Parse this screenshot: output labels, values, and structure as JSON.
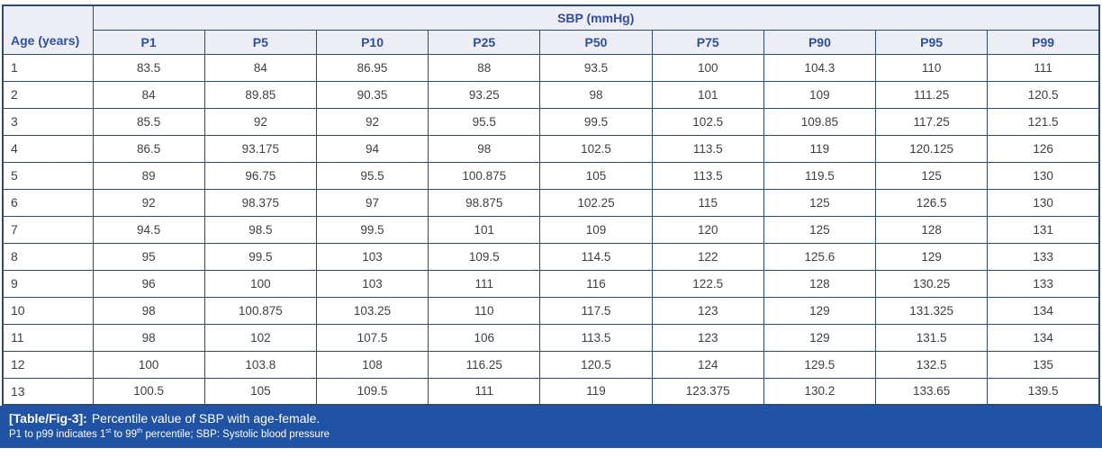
{
  "table": {
    "corner_header": "Age (years)",
    "group_header": "SBP (mmHg)",
    "columns": [
      "P1",
      "P5",
      "P10",
      "P25",
      "P50",
      "P75",
      "P90",
      "P95",
      "P99"
    ],
    "rows": [
      {
        "age": "1",
        "values": [
          "83.5",
          "84",
          "86.95",
          "88",
          "93.5",
          "100",
          "104.3",
          "110",
          "111"
        ]
      },
      {
        "age": "2",
        "values": [
          "84",
          "89.85",
          "90.35",
          "93.25",
          "98",
          "101",
          "109",
          "111.25",
          "120.5"
        ]
      },
      {
        "age": "3",
        "values": [
          "85.5",
          "92",
          "92",
          "95.5",
          "99.5",
          "102.5",
          "109.85",
          "117.25",
          "121.5"
        ]
      },
      {
        "age": "4",
        "values": [
          "86.5",
          "93.175",
          "94",
          "98",
          "102.5",
          "113.5",
          "119",
          "120.125",
          "126"
        ]
      },
      {
        "age": "5",
        "values": [
          "89",
          "96.75",
          "95.5",
          "100.875",
          "105",
          "113.5",
          "119.5",
          "125",
          "130"
        ]
      },
      {
        "age": "6",
        "values": [
          "92",
          "98.375",
          "97",
          "98.875",
          "102.25",
          "115",
          "125",
          "126.5",
          "130"
        ]
      },
      {
        "age": "7",
        "values": [
          "94.5",
          "98.5",
          "99.5",
          "101",
          "109",
          "120",
          "125",
          "128",
          "131"
        ]
      },
      {
        "age": "8",
        "values": [
          "95",
          "99.5",
          "103",
          "109.5",
          "114.5",
          "122",
          "125.6",
          "129",
          "133"
        ]
      },
      {
        "age": "9",
        "values": [
          "96",
          "100",
          "103",
          "111",
          "116",
          "122.5",
          "128",
          "130.25",
          "133"
        ]
      },
      {
        "age": "10",
        "values": [
          "98",
          "100.875",
          "103.25",
          "110",
          "117.5",
          "123",
          "129",
          "131.325",
          "134"
        ]
      },
      {
        "age": "11",
        "values": [
          "98",
          "102",
          "107.5",
          "106",
          "113.5",
          "123",
          "129",
          "131.5",
          "134"
        ]
      },
      {
        "age": "12",
        "values": [
          "100",
          "103.8",
          "108",
          "116.25",
          "120.5",
          "124",
          "129.5",
          "132.5",
          "135"
        ]
      },
      {
        "age": "13",
        "values": [
          "100.5",
          "105",
          "109.5",
          "111",
          "119",
          "123.375",
          "130.2",
          "133.65",
          "139.5"
        ]
      }
    ]
  },
  "caption": {
    "label": "[Table/Fig-3]:",
    "title": "Percentile value of SBP with age-female.",
    "note": {
      "part1": "P1 to p99 indicates 1",
      "sup1": "st",
      "part2": " to 99",
      "sup2": "th",
      "part3": " percentile; SBP: Systolic blood pressure"
    }
  },
  "colors": {
    "header_bg": "#ecedf5",
    "header_text": "#2e4f9e",
    "border": "#2a4a7c",
    "caption_bg": "#2053a3",
    "data_text": "#3f3f3f"
  }
}
